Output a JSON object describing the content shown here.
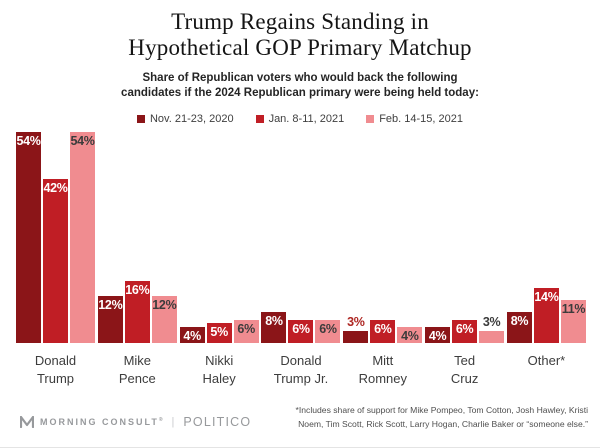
{
  "title": {
    "line1": "Trump Regains Standing in",
    "line2": "Hypothetical GOP Primary Matchup"
  },
  "subtitle": {
    "line1": "Share of Republican voters who would back the following",
    "line2": "candidates if the 2024 Republican primary were being held today:"
  },
  "legend": [
    {
      "label": "Nov. 21-23, 2020",
      "color": "#8b1518"
    },
    {
      "label": "Jan. 8-11, 2021",
      "color": "#c01e25"
    },
    {
      "label": "Feb. 14-15, 2021",
      "color": "#f08c90"
    }
  ],
  "chart_data": {
    "type": "bar",
    "title": "Trump Regains Standing in Hypothetical GOP Primary Matchup",
    "categories": [
      "Donald\nTrump",
      "Mike\nPence",
      "Nikki\nHaley",
      "Donald\nTrump Jr.",
      "Mitt\nRomney",
      "Ted\nCruz",
      "Other*"
    ],
    "series": [
      {
        "name": "Nov. 21-23, 2020",
        "color": "#8b1518",
        "inside_label_color": "#ffffff",
        "outside_label_color": "#ae2723",
        "values": [
          54,
          12,
          4,
          8,
          3,
          4,
          8
        ]
      },
      {
        "name": "Jan. 8-11, 2021",
        "color": "#c01e25",
        "inside_label_color": "#ffffff",
        "outside_label_color": "#c01e25",
        "values": [
          42,
          16,
          5,
          6,
          6,
          6,
          14
        ]
      },
      {
        "name": "Feb. 14-15, 2021",
        "color": "#f08c90",
        "inside_label_color": "#3b3b3b",
        "outside_label_color": "#3b3b3b",
        "values": [
          54,
          12,
          6,
          6,
          4,
          3,
          11
        ]
      }
    ],
    "value_suffix": "%",
    "ylim": [
      0,
      56
    ],
    "grid": false,
    "legend_position": "top",
    "xlabel": "",
    "ylabel": ""
  },
  "footer": {
    "brand_left": "MORNING CONSULT",
    "brand_left_mark": "®",
    "brand_divider": "|",
    "brand_right": "POLITICO",
    "footnote_line1": "*Includes share of support for Mike Pompeo, Tom Cotton, Josh Hawley, Kristi",
    "footnote_line2": "Noem, Tim Scott, Rick Scott, Larry Hogan, Charlie Baker or “someone else.”"
  }
}
